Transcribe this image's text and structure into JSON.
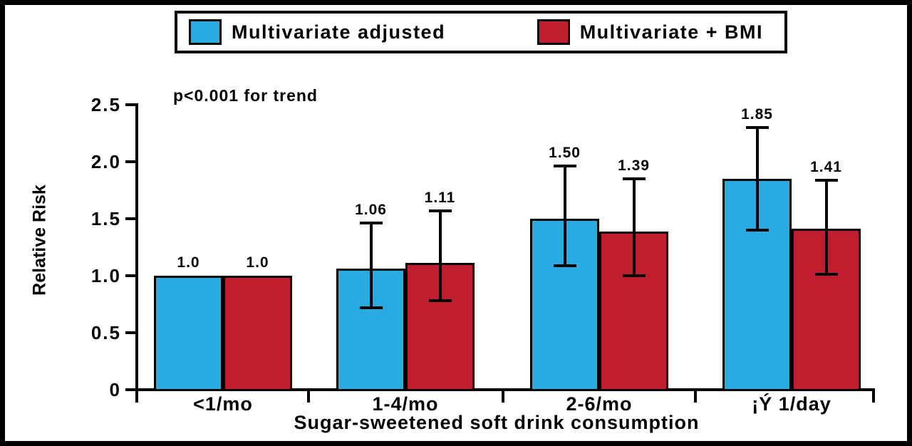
{
  "legend": {
    "items": [
      {
        "label": "Multivariate adjusted",
        "color": "#29ABE2"
      },
      {
        "label": "Multivariate + BMI",
        "color": "#BE1E2D"
      }
    ]
  },
  "chart_data": {
    "type": "bar",
    "title": "",
    "annotation": "p<0.001 for trend",
    "xlabel": "Sugar-sweetened soft drink consumption",
    "ylabel": "Relative Risk",
    "ylim": [
      0,
      2.5
    ],
    "yticks": [
      0,
      0.5,
      1.0,
      1.5,
      2.0,
      2.5
    ],
    "ytick_labels": [
      "0",
      "0.5",
      "1.0",
      "1.5",
      "2.0",
      "2.5"
    ],
    "categories": [
      "<1/mo",
      "1-4/mo",
      "2-6/mo",
      "¡Ý 1/day"
    ],
    "series": [
      {
        "name": "Multivariate adjusted",
        "color": "#29ABE2",
        "values": [
          1.0,
          1.06,
          1.5,
          1.85
        ],
        "labels": [
          "1.0",
          "1.06",
          "1.50",
          "1.85"
        ],
        "error_low": [
          null,
          0.72,
          1.09,
          1.4
        ],
        "error_high": [
          null,
          1.46,
          1.96,
          2.3
        ]
      },
      {
        "name": "Multivariate + BMI",
        "color": "#BE1E2D",
        "values": [
          1.0,
          1.11,
          1.39,
          1.41
        ],
        "labels": [
          "1.0",
          "1.11",
          "1.39",
          "1.41"
        ],
        "error_low": [
          null,
          0.78,
          1.0,
          1.01
        ],
        "error_high": [
          null,
          1.57,
          1.85,
          1.84
        ]
      }
    ],
    "legend_position": "top",
    "grid": false
  }
}
